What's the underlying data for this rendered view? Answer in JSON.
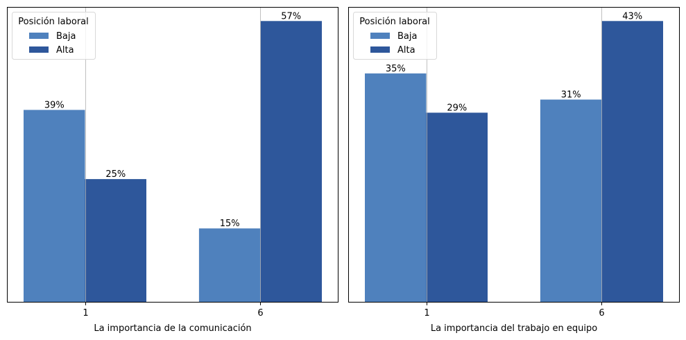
{
  "colors": {
    "baja": "#4f81bd",
    "alta": "#2e579b",
    "grid": "#b0b0b0"
  },
  "chart_data": [
    {
      "type": "bar",
      "title": "",
      "xlabel": "La importancia de la comunicación",
      "ylabel": "",
      "categories": [
        "1",
        "6"
      ],
      "series": [
        {
          "name": "Baja",
          "values": [
            39,
            15
          ],
          "labels": [
            "39%",
            "15%"
          ]
        },
        {
          "name": "Alta",
          "values": [
            25,
            57
          ],
          "labels": [
            "25%",
            "57%"
          ]
        }
      ],
      "ylim": [
        0,
        59.85
      ],
      "yticks_visible": false,
      "grid": "x",
      "legend": {
        "title": "Posición laboral",
        "entries": [
          "Baja",
          "Alta"
        ],
        "placement": "top-left"
      }
    },
    {
      "type": "bar",
      "title": "",
      "xlabel": "La importancia del trabajo en equipo",
      "ylabel": "",
      "categories": [
        "1",
        "6"
      ],
      "series": [
        {
          "name": "Baja",
          "values": [
            35,
            31
          ],
          "labels": [
            "35%",
            "31%"
          ]
        },
        {
          "name": "Alta",
          "values": [
            29,
            43
          ],
          "labels": [
            "29%",
            "43%"
          ]
        }
      ],
      "ylim": [
        0,
        45.15
      ],
      "yticks_visible": false,
      "grid": "x",
      "legend": {
        "title": "Posición laboral",
        "entries": [
          "Baja",
          "Alta"
        ],
        "placement": "top-left"
      }
    }
  ]
}
